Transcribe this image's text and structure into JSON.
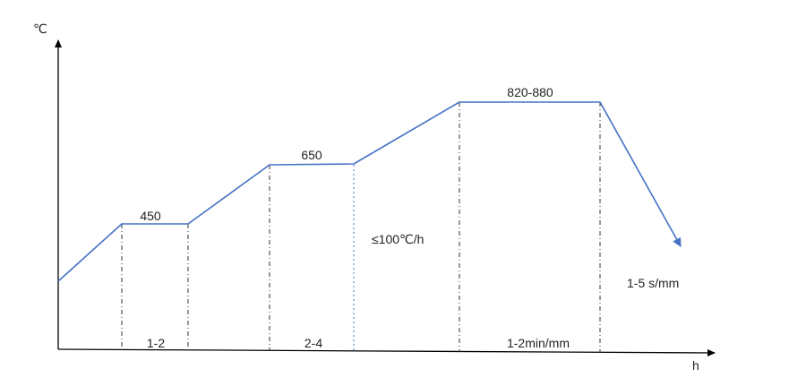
{
  "axes": {
    "y_unit": "℃",
    "x_unit": "h"
  },
  "stages": {
    "s1": {
      "temp": "450",
      "duration": "1-2"
    },
    "s2": {
      "temp": "650",
      "duration": "2-4"
    },
    "s3": {
      "temp": "820-880",
      "duration": "1-2min/mm"
    }
  },
  "heating_rate": "≤100℃/h",
  "cooling_rate": "1-5 s/mm",
  "colors": {
    "curve": "#4472c4",
    "axis": "#000000"
  }
}
